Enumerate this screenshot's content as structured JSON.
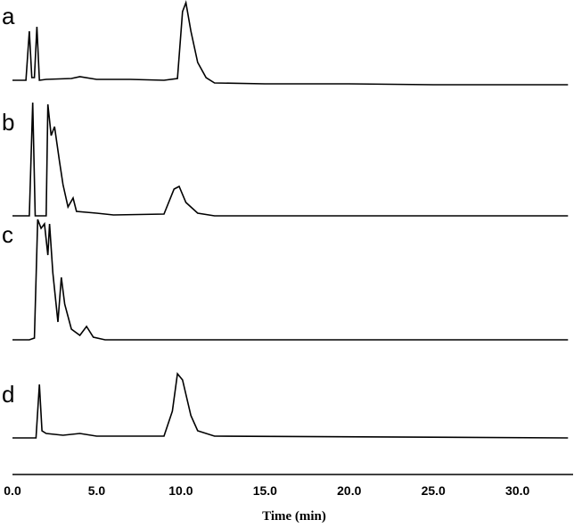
{
  "chart_data": {
    "type": "line",
    "xlabel": "Time (min)",
    "xlim": [
      0,
      33.3
    ],
    "xticks": [
      {
        "value": 0,
        "label": "0.0"
      },
      {
        "value": 5,
        "label": "5.0"
      },
      {
        "value": 10,
        "label": "10.0"
      },
      {
        "value": 15,
        "label": "15.0"
      },
      {
        "value": 20,
        "label": "20.0"
      },
      {
        "value": 25,
        "label": "25.0"
      },
      {
        "value": 30,
        "label": "30.0"
      }
    ],
    "color": "#000000",
    "series": [
      {
        "name": "a",
        "x": [
          0,
          0.8,
          1.0,
          1.15,
          1.3,
          1.45,
          1.6,
          2,
          3.5,
          4,
          5,
          7,
          9,
          9.8,
          10.1,
          10.3,
          10.6,
          11,
          11.5,
          12,
          15,
          20,
          25,
          30,
          33
        ],
        "values": [
          5,
          5,
          60,
          8,
          8,
          65,
          5,
          6,
          7,
          9,
          6,
          6,
          5,
          7,
          82,
          92,
          60,
          25,
          8,
          2,
          1,
          1,
          0,
          0,
          0
        ]
      },
      {
        "name": "b",
        "x": [
          0,
          1.0,
          1.2,
          1.35,
          1.5,
          2.0,
          2.1,
          2.3,
          2.5,
          2.8,
          3.0,
          3.3,
          3.6,
          3.8,
          5,
          6,
          9,
          9.6,
          9.9,
          10.3,
          11,
          12,
          33
        ],
        "values": [
          0,
          0,
          127,
          0,
          0,
          0,
          125,
          90,
          100,
          60,
          35,
          10,
          20,
          5,
          3,
          1,
          2,
          30,
          33,
          15,
          3,
          0,
          0
        ]
      },
      {
        "name": "c",
        "x": [
          0,
          1.0,
          1.3,
          1.5,
          1.7,
          1.9,
          2.1,
          2.2,
          2.4,
          2.7,
          2.9,
          3.1,
          3.5,
          4.0,
          4.4,
          4.8,
          5.5,
          33
        ],
        "values": [
          0,
          0,
          2,
          135,
          125,
          130,
          95,
          130,
          75,
          20,
          70,
          40,
          12,
          5,
          15,
          3,
          0,
          0
        ]
      },
      {
        "name": "d",
        "x": [
          0,
          1.4,
          1.6,
          1.75,
          2,
          3,
          4,
          5,
          9,
          9.5,
          9.8,
          10.1,
          10.6,
          11,
          12,
          33
        ],
        "values": [
          0,
          0,
          60,
          8,
          5,
          3,
          5,
          2,
          2,
          30,
          72,
          65,
          25,
          8,
          2,
          0
        ]
      }
    ]
  }
}
